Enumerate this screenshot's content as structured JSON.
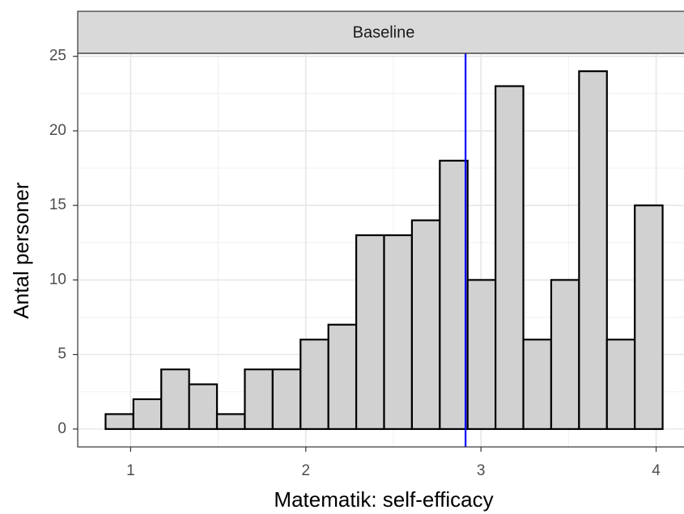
{
  "chart_data": {
    "type": "histogram",
    "strip_label": "Baseline",
    "x_label": "Matematik: self-efficacy",
    "y_label": "Antal personer",
    "bins": [
      0.857,
      1.016,
      1.175,
      1.334,
      1.493,
      1.652,
      1.811,
      1.97,
      2.129,
      2.288,
      2.447,
      2.606,
      2.765,
      2.924,
      3.083,
      3.242,
      3.401,
      3.56,
      3.719,
      3.878,
      4.037
    ],
    "values": [
      1,
      2,
      4,
      3,
      1,
      4,
      4,
      6,
      7,
      13,
      13,
      14,
      18,
      10,
      23,
      6,
      10,
      24,
      6,
      15
    ],
    "color": "#d1d1d1",
    "edge_color": "#000000",
    "vline": 2.912,
    "vline_color": "#0000ff",
    "xlim": [
      0.698,
      4.196
    ],
    "xticks": [
      1,
      2,
      3,
      4
    ],
    "ylim": [
      -1.2,
      25.2
    ],
    "yticks": [
      0,
      5,
      10,
      15,
      20,
      25
    ],
    "x_minor_grid": [
      1.5,
      2.5,
      3.5
    ],
    "y_minor_grid": [
      2.5,
      7.5,
      12.5,
      17.5,
      22.5
    ],
    "grid": true
  }
}
